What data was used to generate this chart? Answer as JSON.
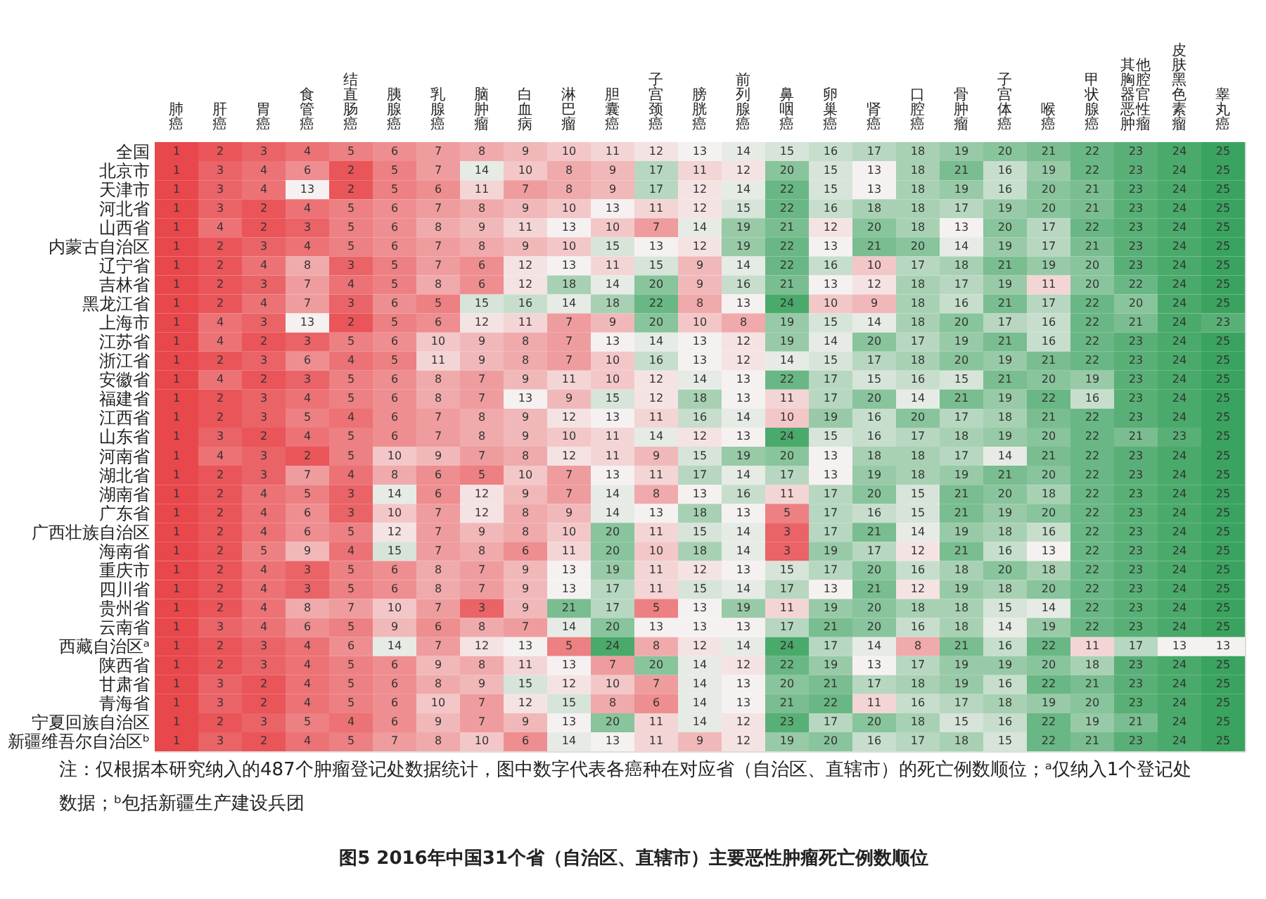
{
  "chart_data": {
    "type": "heatmap",
    "title": "图5 2016年中国31个省（自治区、直辖市）主要恶性肿瘤死亡例数顺位",
    "annotations": [
      "注：仅根据本研究纳入的487个肿瘤登记处数据统计，图中数字代表各癌种在对应省（自治区、直辖市）的死亡例数顺位；ᵃ仅纳入1个登记处数据；ᵇ包括新疆生产建设兵团"
    ],
    "categories": [
      "肺癌",
      "肝癌",
      "胃癌",
      "食管癌",
      "结直肠癌",
      "胰腺癌",
      "乳腺癌",
      "脑肿瘤",
      "白血病",
      "淋巴瘤",
      "胆囊癌",
      "子宫颈癌",
      "膀胱癌",
      "前列腺癌",
      "鼻咽癌",
      "卵巢癌",
      "肾癌",
      "口腔癌",
      "骨肿瘤",
      "子宫体癌",
      "喉癌",
      "甲状腺癌",
      "其他胸腔器官恶性肿瘤",
      "皮肤黑色素瘤",
      "睾丸癌"
    ],
    "y_categories": [
      "全国",
      "北京市",
      "天津市",
      "河北省",
      "山西省",
      "内蒙古自治区",
      "辽宁省",
      "吉林省",
      "黑龙江省",
      "上海市",
      "江苏省",
      "浙江省",
      "安徽省",
      "福建省",
      "江西省",
      "山东省",
      "河南省",
      "湖北省",
      "湖南省",
      "广东省",
      "广西壮族自治区",
      "海南省",
      "重庆市",
      "四川省",
      "贵州省",
      "云南省",
      "西藏自治区ᵃ",
      "陕西省",
      "甘肃省",
      "青海省",
      "宁夏回族自治区",
      "新疆维吾尔自治区ᵇ"
    ],
    "cells": [
      [
        1,
        2,
        3,
        4,
        5,
        6,
        7,
        8,
        9,
        10,
        11,
        12,
        13,
        14,
        15,
        16,
        17,
        18,
        19,
        20,
        21,
        22,
        23,
        24,
        25
      ],
      [
        1,
        3,
        4,
        6,
        2,
        5,
        7,
        14,
        10,
        8,
        9,
        17,
        11,
        12,
        20,
        15,
        13,
        18,
        21,
        16,
        19,
        22,
        23,
        24,
        25
      ],
      [
        1,
        3,
        4,
        13,
        2,
        5,
        6,
        11,
        7,
        8,
        9,
        17,
        12,
        14,
        22,
        15,
        13,
        18,
        19,
        16,
        20,
        21,
        23,
        24,
        25
      ],
      [
        1,
        3,
        2,
        4,
        5,
        6,
        7,
        8,
        9,
        10,
        13,
        11,
        12,
        15,
        22,
        16,
        18,
        18,
        17,
        19,
        20,
        21,
        23,
        24,
        25
      ],
      [
        1,
        4,
        2,
        3,
        5,
        6,
        8,
        9,
        11,
        13,
        10,
        7,
        14,
        19,
        21,
        12,
        20,
        18,
        13,
        20,
        17,
        22,
        23,
        24,
        25
      ],
      [
        1,
        2,
        3,
        4,
        5,
        6,
        7,
        8,
        9,
        10,
        15,
        13,
        12,
        19,
        22,
        13,
        21,
        20,
        14,
        19,
        17,
        21,
        23,
        24,
        25
      ],
      [
        1,
        2,
        4,
        8,
        3,
        5,
        7,
        6,
        12,
        13,
        11,
        15,
        9,
        14,
        22,
        16,
        10,
        17,
        18,
        21,
        19,
        20,
        23,
        24,
        25
      ],
      [
        1,
        2,
        3,
        7,
        4,
        5,
        8,
        6,
        12,
        18,
        14,
        20,
        9,
        16,
        21,
        13,
        12,
        18,
        17,
        19,
        11,
        20,
        22,
        24,
        25
      ],
      [
        1,
        2,
        4,
        7,
        3,
        6,
        5,
        15,
        16,
        14,
        18,
        22,
        8,
        13,
        24,
        10,
        9,
        18,
        16,
        21,
        17,
        22,
        20,
        24,
        25
      ],
      [
        1,
        4,
        3,
        13,
        2,
        5,
        6,
        12,
        11,
        7,
        9,
        20,
        10,
        8,
        19,
        15,
        14,
        18,
        20,
        17,
        16,
        22,
        21,
        24,
        23
      ],
      [
        1,
        4,
        2,
        3,
        5,
        6,
        10,
        9,
        8,
        7,
        13,
        14,
        13,
        12,
        19,
        14,
        20,
        17,
        19,
        21,
        16,
        22,
        23,
        24,
        25
      ],
      [
        1,
        2,
        3,
        6,
        4,
        5,
        11,
        9,
        8,
        7,
        10,
        16,
        13,
        12,
        14,
        15,
        17,
        18,
        20,
        19,
        21,
        22,
        23,
        24,
        25
      ],
      [
        1,
        4,
        2,
        3,
        5,
        6,
        8,
        7,
        9,
        11,
        10,
        12,
        14,
        13,
        22,
        17,
        15,
        16,
        15,
        21,
        20,
        19,
        23,
        24,
        25
      ],
      [
        1,
        2,
        3,
        4,
        5,
        6,
        8,
        7,
        13,
        9,
        15,
        12,
        18,
        13,
        11,
        17,
        20,
        14,
        21,
        19,
        22,
        16,
        23,
        24,
        25
      ],
      [
        1,
        2,
        3,
        5,
        4,
        6,
        7,
        8,
        9,
        12,
        13,
        11,
        16,
        14,
        10,
        19,
        16,
        20,
        17,
        18,
        21,
        22,
        23,
        24,
        25
      ],
      [
        1,
        3,
        2,
        4,
        5,
        6,
        7,
        8,
        9,
        10,
        11,
        14,
        12,
        13,
        24,
        15,
        16,
        17,
        18,
        19,
        20,
        22,
        21,
        23,
        25
      ],
      [
        1,
        4,
        3,
        2,
        5,
        10,
        9,
        7,
        8,
        12,
        11,
        9,
        15,
        19,
        20,
        13,
        18,
        18,
        17,
        14,
        21,
        22,
        23,
        24,
        25
      ],
      [
        1,
        2,
        3,
        7,
        4,
        8,
        6,
        5,
        10,
        7,
        13,
        11,
        17,
        14,
        17,
        13,
        19,
        18,
        19,
        21,
        20,
        22,
        23,
        24,
        25
      ],
      [
        1,
        2,
        4,
        5,
        3,
        14,
        6,
        12,
        9,
        7,
        14,
        8,
        13,
        16,
        11,
        17,
        20,
        15,
        21,
        20,
        18,
        22,
        23,
        24,
        25
      ],
      [
        1,
        2,
        4,
        6,
        3,
        10,
        7,
        12,
        8,
        9,
        14,
        13,
        18,
        13,
        5,
        17,
        16,
        15,
        21,
        19,
        20,
        22,
        23,
        24,
        25
      ],
      [
        1,
        2,
        4,
        6,
        5,
        12,
        7,
        9,
        8,
        10,
        20,
        11,
        15,
        14,
        3,
        17,
        21,
        14,
        19,
        18,
        16,
        22,
        23,
        24,
        25
      ],
      [
        1,
        2,
        5,
        9,
        4,
        15,
        7,
        8,
        6,
        11,
        20,
        10,
        18,
        14,
        3,
        19,
        17,
        12,
        21,
        16,
        13,
        22,
        23,
        24,
        25
      ],
      [
        1,
        2,
        4,
        3,
        5,
        6,
        8,
        7,
        9,
        13,
        19,
        11,
        12,
        13,
        15,
        17,
        20,
        16,
        18,
        20,
        18,
        22,
        23,
        24,
        25
      ],
      [
        1,
        2,
        4,
        3,
        5,
        6,
        8,
        7,
        9,
        13,
        17,
        11,
        15,
        14,
        17,
        13,
        21,
        12,
        19,
        18,
        20,
        22,
        23,
        24,
        25
      ],
      [
        1,
        2,
        4,
        8,
        7,
        10,
        7,
        3,
        9,
        21,
        17,
        5,
        13,
        19,
        11,
        19,
        20,
        18,
        18,
        15,
        14,
        22,
        23,
        24,
        25
      ],
      [
        1,
        3,
        4,
        6,
        5,
        9,
        6,
        8,
        7,
        14,
        20,
        13,
        13,
        13,
        17,
        21,
        20,
        16,
        18,
        14,
        19,
        22,
        23,
        24,
        25
      ],
      [
        1,
        2,
        3,
        4,
        6,
        14,
        7,
        12,
        13,
        5,
        24,
        8,
        12,
        14,
        24,
        17,
        14,
        8,
        21,
        16,
        22,
        11,
        17,
        13,
        13
      ],
      [
        1,
        2,
        3,
        4,
        5,
        6,
        9,
        8,
        11,
        13,
        7,
        20,
        14,
        12,
        22,
        19,
        13,
        17,
        19,
        19,
        20,
        18,
        23,
        24,
        25
      ],
      [
        1,
        3,
        2,
        4,
        5,
        6,
        8,
        9,
        15,
        12,
        10,
        7,
        14,
        13,
        20,
        21,
        17,
        18,
        19,
        16,
        22,
        21,
        23,
        24,
        25
      ],
      [
        1,
        3,
        2,
        4,
        5,
        6,
        10,
        7,
        12,
        15,
        8,
        6,
        14,
        13,
        21,
        22,
        11,
        16,
        17,
        18,
        19,
        20,
        23,
        24,
        25
      ],
      [
        1,
        2,
        3,
        5,
        4,
        6,
        9,
        7,
        9,
        13,
        20,
        11,
        14,
        12,
        23,
        17,
        20,
        18,
        15,
        16,
        22,
        19,
        21,
        24,
        25
      ],
      [
        1,
        3,
        2,
        4,
        5,
        7,
        8,
        10,
        6,
        14,
        13,
        11,
        9,
        12,
        19,
        20,
        16,
        17,
        18,
        15,
        22,
        21,
        23,
        24,
        25
      ]
    ],
    "colors": [
      "#e8474b",
      "#f6f1f1",
      "#3aa35f"
    ],
    "data_labels": true
  }
}
